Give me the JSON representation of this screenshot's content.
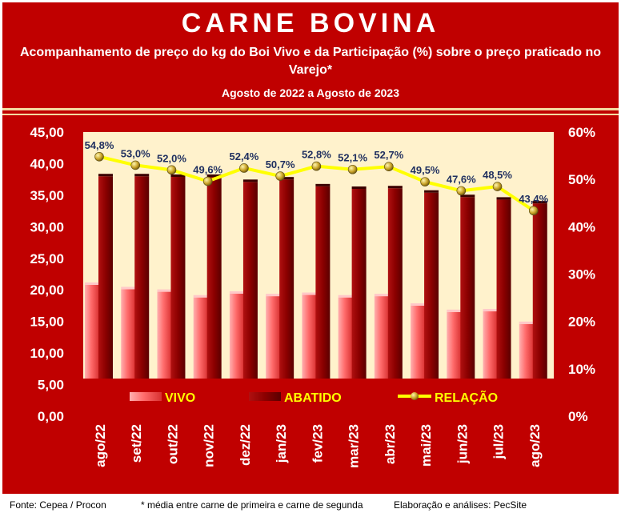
{
  "header": {
    "title": "CARNE BOVINA",
    "subtitle": "Acompanhamento de preço do kg do Boi Vivo e da Participação (%) sobre o preço praticado no Varejo*",
    "period": "Agosto de 2022 a Agosto de 2023"
  },
  "footer": {
    "source": "Fonte: Cepea / Procon",
    "note": "* média entre carne de primeira e carne de segunda",
    "credit": "Elaboração e análises: PecSite"
  },
  "colors": {
    "background": "#c00000",
    "plot_area": "#fff2cc",
    "vivo_bar": "#ff6b6b",
    "abatido_bar": "#8b0000",
    "relacao_line": "#ffff00",
    "relacao_marker": "#c9a227",
    "label_text": "#1f2f5f",
    "legend_text": "#ffff00"
  },
  "chart_data": {
    "type": "bar",
    "categories": [
      "ago/22",
      "set/22",
      "out/22",
      "nov/22",
      "dez/22",
      "jan/23",
      "fev/23",
      "mar/23",
      "abr/23",
      "mai/23",
      "jun/23",
      "jul/23",
      "ago/23"
    ],
    "series": [
      {
        "name": "VIVO",
        "type": "bar",
        "axis": "left",
        "values": [
          20.8,
          20.1,
          19.7,
          18.8,
          19.4,
          19.0,
          19.2,
          18.8,
          19.0,
          17.5,
          16.5,
          16.6,
          14.6
        ]
      },
      {
        "name": "ABATIDO",
        "type": "bar",
        "axis": "left",
        "values": [
          38.0,
          38.0,
          37.9,
          37.9,
          37.1,
          37.5,
          36.4,
          36.0,
          36.1,
          35.4,
          34.7,
          34.3,
          33.7
        ]
      },
      {
        "name": "RELAÇÃO",
        "type": "line",
        "axis": "right",
        "values": [
          54.8,
          53.0,
          52.0,
          49.6,
          52.4,
          50.7,
          52.8,
          52.1,
          52.7,
          49.5,
          47.6,
          48.5,
          43.4
        ],
        "labels": [
          "54,8%",
          "53,0%",
          "52,0%",
          "49,6%",
          "52,4%",
          "50,7%",
          "52,8%",
          "52,1%",
          "52,7%",
          "49,5%",
          "47,6%",
          "48,5%",
          "43,4%"
        ]
      }
    ],
    "left_axis": {
      "ylim": [
        0,
        45
      ],
      "ticks": [
        0,
        5,
        10,
        15,
        20,
        25,
        30,
        35,
        40,
        45
      ],
      "tick_labels": [
        "0,00",
        "5,00",
        "10,00",
        "15,00",
        "20,00",
        "25,00",
        "30,00",
        "35,00",
        "40,00",
        "45,00"
      ]
    },
    "right_axis": {
      "ylim": [
        0,
        60
      ],
      "ticks": [
        0,
        10,
        20,
        30,
        40,
        50,
        60
      ],
      "tick_labels": [
        "0%",
        "10%",
        "20%",
        "30%",
        "40%",
        "50%",
        "60%"
      ]
    },
    "legend": {
      "placement": "bottom-inside",
      "entries": [
        "VIVO",
        "ABATIDO",
        "RELAÇÃO"
      ]
    },
    "grid": false
  }
}
